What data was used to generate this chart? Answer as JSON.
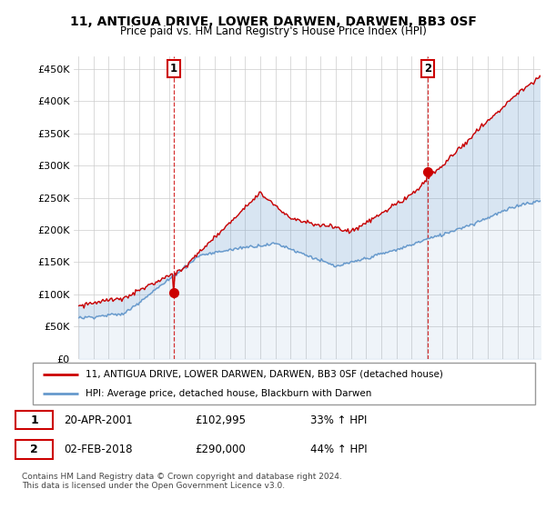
{
  "title": "11, ANTIGUA DRIVE, LOWER DARWEN, DARWEN, BB3 0SF",
  "subtitle": "Price paid vs. HM Land Registry's House Price Index (HPI)",
  "ylabel_ticks": [
    "£0",
    "£50K",
    "£100K",
    "£150K",
    "£200K",
    "£250K",
    "£300K",
    "£350K",
    "£400K",
    "£450K"
  ],
  "ytick_values": [
    0,
    50000,
    100000,
    150000,
    200000,
    250000,
    300000,
    350000,
    400000,
    450000
  ],
  "ylim": [
    0,
    470000
  ],
  "xlim_start": 1994.7,
  "xlim_end": 2025.5,
  "sale1_x": 2001.3,
  "sale1_y": 102995,
  "sale2_x": 2018.08,
  "sale2_y": 290000,
  "sale1_label": "1",
  "sale2_label": "2",
  "legend_line1": "11, ANTIGUA DRIVE, LOWER DARWEN, DARWEN, BB3 0SF (detached house)",
  "legend_line2": "HPI: Average price, detached house, Blackburn with Darwen",
  "table_row1_num": "1",
  "table_row1_date": "20-APR-2001",
  "table_row1_price": "£102,995",
  "table_row1_hpi": "33% ↑ HPI",
  "table_row2_num": "2",
  "table_row2_date": "02-FEB-2018",
  "table_row2_price": "£290,000",
  "table_row2_hpi": "44% ↑ HPI",
  "footnote": "Contains HM Land Registry data © Crown copyright and database right 2024.\nThis data is licensed under the Open Government Licence v3.0.",
  "line_color_red": "#cc0000",
  "line_color_blue": "#6699cc",
  "fill_color": "#ddeeff",
  "bg_color": "#ffffff",
  "grid_color": "#cccccc"
}
